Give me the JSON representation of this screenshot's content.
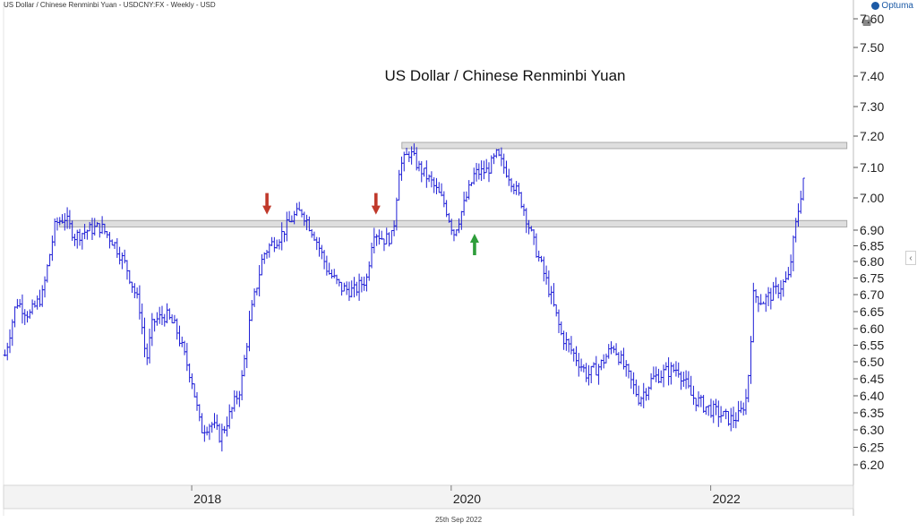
{
  "header": {
    "caption": "US Dollar / Chinese Renminbi Yuan - USDCNY:FX - Weekly - USD",
    "brand": "Optuma",
    "date": "25th Sep 2022"
  },
  "icons": {
    "lock": "lock-icon",
    "collapse": "chevron-left-icon",
    "brand": "optuma-logo-icon",
    "up_arrow": "arrow-up-icon",
    "down_arrow": "arrow-down-icon"
  },
  "colors": {
    "bars": "#1f1fd6",
    "zone_fill": "#dedede",
    "zone_stroke": "#9a9a9a",
    "down_arrow": "#c0392b",
    "up_arrow": "#2e9d3a"
  },
  "chart_data": {
    "type": "ohlc",
    "title": "US Dollar / Chinese Renminbi Yuan",
    "interval": "Weekly",
    "x_tick_labels": [
      "2018",
      "2020",
      "2022"
    ],
    "y_tick_labels": [
      "6.20",
      "6.25",
      "6.30",
      "6.35",
      "6.40",
      "6.45",
      "6.50",
      "6.55",
      "6.60",
      "6.65",
      "6.70",
      "6.75",
      "6.80",
      "6.85",
      "6.90",
      "7.00",
      "7.10",
      "7.20",
      "7.30",
      "7.40",
      "7.50",
      "7.60"
    ],
    "ylim": [
      6.17,
      7.65
    ],
    "xlim": [
      2016.55,
      2023.1
    ],
    "grid": false,
    "series_points": [
      {
        "x": 2016.56,
        "y": 6.52
      },
      {
        "x": 2016.65,
        "y": 6.68
      },
      {
        "x": 2016.75,
        "y": 6.64
      },
      {
        "x": 2016.85,
        "y": 6.7
      },
      {
        "x": 2016.95,
        "y": 6.92
      },
      {
        "x": 2017.02,
        "y": 6.94
      },
      {
        "x": 2017.1,
        "y": 6.88
      },
      {
        "x": 2017.2,
        "y": 6.9
      },
      {
        "x": 2017.3,
        "y": 6.91
      },
      {
        "x": 2017.4,
        "y": 6.86
      },
      {
        "x": 2017.5,
        "y": 6.78
      },
      {
        "x": 2017.6,
        "y": 6.66
      },
      {
        "x": 2017.65,
        "y": 6.5
      },
      {
        "x": 2017.7,
        "y": 6.62
      },
      {
        "x": 2017.8,
        "y": 6.64
      },
      {
        "x": 2017.88,
        "y": 6.6
      },
      {
        "x": 2017.95,
        "y": 6.51
      },
      {
        "x": 2018.0,
        "y": 6.45
      },
      {
        "x": 2018.07,
        "y": 6.3
      },
      {
        "x": 2018.15,
        "y": 6.32
      },
      {
        "x": 2018.22,
        "y": 6.28
      },
      {
        "x": 2018.3,
        "y": 6.35
      },
      {
        "x": 2018.38,
        "y": 6.43
      },
      {
        "x": 2018.45,
        "y": 6.63
      },
      {
        "x": 2018.55,
        "y": 6.82
      },
      {
        "x": 2018.6,
        "y": 6.85
      },
      {
        "x": 2018.68,
        "y": 6.88
      },
      {
        "x": 2018.78,
        "y": 6.94
      },
      {
        "x": 2018.85,
        "y": 6.96
      },
      {
        "x": 2018.95,
        "y": 6.88
      },
      {
        "x": 2019.05,
        "y": 6.77
      },
      {
        "x": 2019.15,
        "y": 6.72
      },
      {
        "x": 2019.25,
        "y": 6.71
      },
      {
        "x": 2019.35,
        "y": 6.75
      },
      {
        "x": 2019.4,
        "y": 6.9
      },
      {
        "x": 2019.48,
        "y": 6.87
      },
      {
        "x": 2019.55,
        "y": 6.88
      },
      {
        "x": 2019.6,
        "y": 7.1
      },
      {
        "x": 2019.68,
        "y": 7.15
      },
      {
        "x": 2019.75,
        "y": 7.1
      },
      {
        "x": 2019.85,
        "y": 7.05
      },
      {
        "x": 2019.95,
        "y": 6.98
      },
      {
        "x": 2020.02,
        "y": 6.89
      },
      {
        "x": 2020.1,
        "y": 6.98
      },
      {
        "x": 2020.18,
        "y": 7.08
      },
      {
        "x": 2020.28,
        "y": 7.09
      },
      {
        "x": 2020.35,
        "y": 7.14
      },
      {
        "x": 2020.45,
        "y": 7.07
      },
      {
        "x": 2020.55,
        "y": 6.98
      },
      {
        "x": 2020.65,
        "y": 6.84
      },
      {
        "x": 2020.75,
        "y": 6.72
      },
      {
        "x": 2020.85,
        "y": 6.58
      },
      {
        "x": 2020.95,
        "y": 6.52
      },
      {
        "x": 2021.05,
        "y": 6.46
      },
      {
        "x": 2021.15,
        "y": 6.49
      },
      {
        "x": 2021.25,
        "y": 6.55
      },
      {
        "x": 2021.35,
        "y": 6.47
      },
      {
        "x": 2021.45,
        "y": 6.39
      },
      {
        "x": 2021.55,
        "y": 6.45
      },
      {
        "x": 2021.65,
        "y": 6.47
      },
      {
        "x": 2021.75,
        "y": 6.48
      },
      {
        "x": 2021.85,
        "y": 6.4
      },
      {
        "x": 2021.95,
        "y": 6.37
      },
      {
        "x": 2022.05,
        "y": 6.35
      },
      {
        "x": 2022.15,
        "y": 6.33
      },
      {
        "x": 2022.22,
        "y": 6.34
      },
      {
        "x": 2022.28,
        "y": 6.4
      },
      {
        "x": 2022.33,
        "y": 6.7
      },
      {
        "x": 2022.4,
        "y": 6.68
      },
      {
        "x": 2022.5,
        "y": 6.71
      },
      {
        "x": 2022.6,
        "y": 6.75
      },
      {
        "x": 2022.65,
        "y": 6.9
      },
      {
        "x": 2022.71,
        "y": 7.05
      },
      {
        "x": 2022.73,
        "y": 7.13
      }
    ],
    "zones": [
      {
        "from": 2016.98,
        "to": 2023.05,
        "y_low": 6.91,
        "y_high": 6.93
      },
      {
        "from": 2019.62,
        "to": 2023.05,
        "y_low": 7.16,
        "y_high": 7.18
      }
    ],
    "markers": [
      {
        "type": "down",
        "x": 2018.58,
        "y": 6.94
      },
      {
        "type": "down",
        "x": 2019.42,
        "y": 6.94
      },
      {
        "type": "up",
        "x": 2020.18,
        "y": 6.9
      }
    ]
  }
}
